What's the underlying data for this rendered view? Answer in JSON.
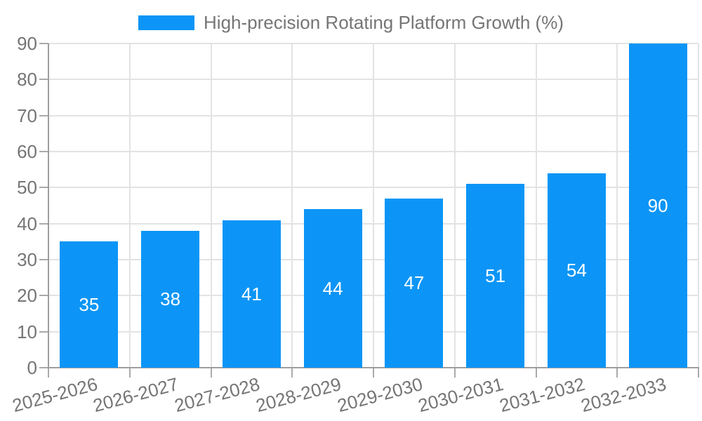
{
  "chart_data": {
    "type": "bar",
    "title": "High-precision Rotating Platform Growth (%)",
    "categories": [
      "2025-2026",
      "2026-2027",
      "2027-2028",
      "2028-2029",
      "2029-2030",
      "2030-2031",
      "2031-2032",
      "2032-2033"
    ],
    "series": [
      {
        "name": "High-precision Rotating Platform Growth (%)",
        "values": [
          35,
          38,
          41,
          44,
          47,
          51,
          54,
          90
        ]
      }
    ],
    "xlabel": "",
    "ylabel": "",
    "ylim": [
      0,
      90
    ],
    "yticks": [
      0,
      10,
      20,
      30,
      40,
      50,
      60,
      70,
      80,
      90
    ],
    "grid": true,
    "legend_position": "top-center",
    "value_label_position": "inside-center",
    "colors": {
      "bar": "#0c95f6",
      "grid": "#e3e3e3",
      "axis": "#9e9e9e",
      "tick": "#aaaaaa",
      "tick_label_text": "#757575",
      "legend_text": "#757575",
      "value_label_text": "#ffffff",
      "background": "#ffffff"
    }
  }
}
